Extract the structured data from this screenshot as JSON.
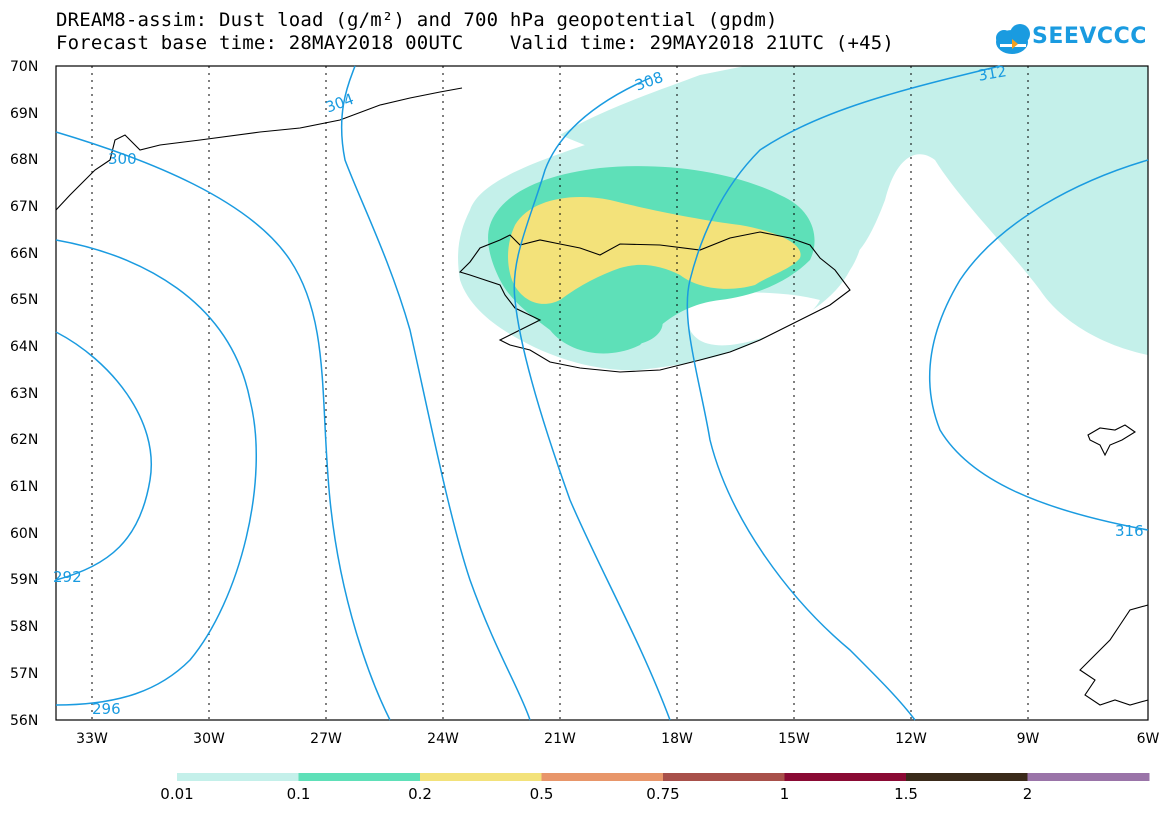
{
  "title": {
    "line1": "DREAM8-assim: Dust load (g/m²) and 700 hPa geopotential (gpdm)",
    "line2": "Forecast base time: 28MAY2018 00UTC    Valid time: 29MAY2018 21UTC (+45)"
  },
  "logo": {
    "text": "SEEVCCC",
    "icon": "cloud-icon",
    "color": "#1a9be0"
  },
  "axes": {
    "lat_labels": [
      "70N",
      "69N",
      "68N",
      "67N",
      "66N",
      "65N",
      "64N",
      "63N",
      "62N",
      "61N",
      "60N",
      "59N",
      "58N",
      "57N",
      "56N"
    ],
    "lon_labels": [
      "33W",
      "30W",
      "27W",
      "24W",
      "21W",
      "18W",
      "15W",
      "12W",
      "9W",
      "6W"
    ]
  },
  "contours": {
    "color": "#1a9be0",
    "labels": [
      "292",
      "296",
      "300",
      "304",
      "308",
      "312",
      "316"
    ]
  },
  "colorbar": {
    "colors": [
      "#c4f0ea",
      "#5ee0b8",
      "#f3e27a",
      "#e8966a",
      "#a8504a",
      "#8a0a34",
      "#3a2a1a",
      "#9a74a8"
    ],
    "labels": [
      "0.01",
      "0.1",
      "0.2",
      "0.5",
      "0.75",
      "1",
      "1.5",
      "2"
    ]
  }
}
